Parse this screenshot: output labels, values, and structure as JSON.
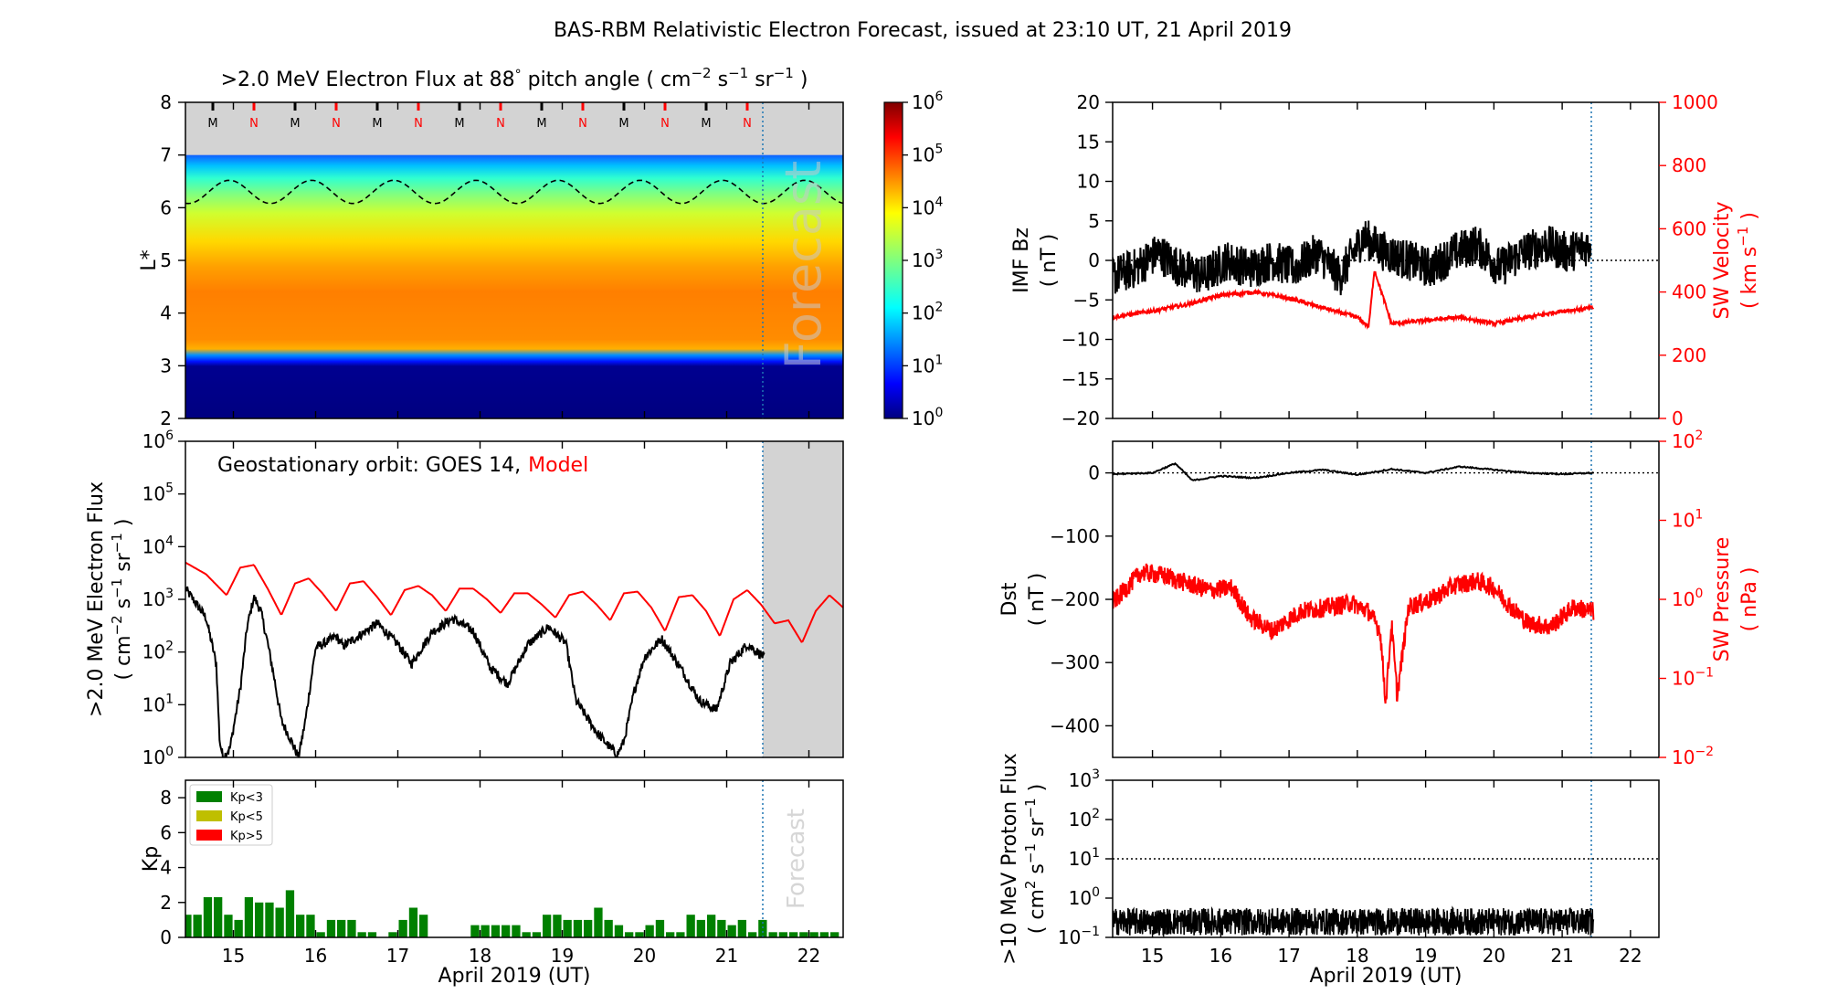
{
  "figure": {
    "title": "BAS-RBM Relativistic Electron Forecast, issued at 23:10 UT, 21 April 2019",
    "forecast_text": "Forecast",
    "date_axis_label": "April 2019 (UT)",
    "day_ticks": [
      "15",
      "16",
      "17",
      "18",
      "19",
      "20",
      "21",
      "22"
    ],
    "forecast_line_color": "#1f77b4"
  },
  "chart_data": [
    {
      "id": "flux-map",
      "type": "heatmap",
      "title": ">2.0 MeV Electron Flux at 88° pitch angle ( cm⁻² s⁻¹ sr⁻¹ )",
      "title_parts": [
        ">2.0 MeV Electron Flux at 88",
        "°",
        "  pitch angle ( cm",
        "−2",
        " s",
        "−1",
        " sr",
        "−1",
        " )"
      ],
      "ylabel": "L*",
      "ylim": [
        2,
        8
      ],
      "yticks": [
        "2",
        "3",
        "4",
        "5",
        "6",
        "7",
        "8"
      ],
      "xlim": [
        "2019-04-14T10:00",
        "2019-04-22T10:00"
      ],
      "forecast_start": "2019-04-21T12:00",
      "grey_band_l": [
        7,
        8
      ],
      "colormap": "jet",
      "mlt_markers": [
        "M",
        "N",
        "M",
        "N",
        "M",
        "N",
        "M",
        "N",
        "M",
        "N",
        "M",
        "N",
        "M",
        "N"
      ],
      "mlt_colors": {
        "M": "#000000",
        "N": "#ff0000"
      },
      "dashed_contour": {
        "mean_l": 6.3,
        "amplitude_l": 0.22,
        "period_days": 1
      },
      "colorbar": {
        "scale": "log",
        "range": [
          1,
          1000000
        ],
        "ticks": [
          {
            "base": "10",
            "exp": "0"
          },
          {
            "base": "10",
            "exp": "1"
          },
          {
            "base": "10",
            "exp": "2"
          },
          {
            "base": "10",
            "exp": "3"
          },
          {
            "base": "10",
            "exp": "4"
          },
          {
            "base": "10",
            "exp": "5"
          },
          {
            "base": "10",
            "exp": "6"
          }
        ]
      },
      "forecast_label": "Forecast"
    },
    {
      "id": "geo-flux",
      "type": "line",
      "annotation": "Geostationary orbit:   GOES 14,",
      "annotation_model": "Model",
      "ylabel_line1": ">2.0 MeV Electron Flux",
      "ylabel_line2_parts": [
        "( cm",
        "−2",
        " s",
        "−1",
        " sr",
        "−1",
        " )"
      ],
      "yscale": "log",
      "ylim": [
        1,
        1000000
      ],
      "yticks": [
        {
          "base": "10",
          "exp": "0"
        },
        {
          "base": "10",
          "exp": "1"
        },
        {
          "base": "10",
          "exp": "2"
        },
        {
          "base": "10",
          "exp": "3"
        },
        {
          "base": "10",
          "exp": "4"
        },
        {
          "base": "10",
          "exp": "5"
        },
        {
          "base": "10",
          "exp": "6"
        }
      ],
      "series": [
        {
          "name": "GOES 14",
          "color": "#000000",
          "x": [
            "04-14 10:00",
            "04-14 16:00",
            "04-14 19:00",
            "04-14 20:00",
            "04-14 21:00",
            "04-14 23:00",
            "04-15 02:00",
            "04-15 04:00",
            "04-15 06:00",
            "04-15 08:00",
            "04-15 10:00",
            "04-15 12:00",
            "04-15 14:00",
            "04-15 17:00",
            "04-15 19:00",
            "04-15 21:00",
            "04-16 00:00",
            "04-16 02:00",
            "04-16 06:00",
            "04-16 08:00",
            "04-16 12:00",
            "04-16 18:00",
            "04-17 00:00",
            "04-17 04:00",
            "04-17 10:00",
            "04-17 16:00",
            "04-17 22:00",
            "04-18 03:00",
            "04-18 08:00",
            "04-18 14:00",
            "04-18 20:00",
            "04-19 01:00",
            "04-19 04:00",
            "04-19 10:00",
            "04-19 16:00",
            "04-19 18:00",
            "04-19 21:00",
            "04-20 00:00",
            "04-20 05:00",
            "04-20 11:00",
            "04-20 16:00",
            "04-20 21:00",
            "04-21 01:00",
            "04-21 06:00",
            "04-21 11:00"
          ],
          "y": [
            1600,
            450,
            60,
            2,
            1,
            1.5,
            20,
            300,
            1100,
            600,
            150,
            30,
            5,
            2,
            1,
            5,
            120,
            140,
            200,
            130,
            190,
            350,
            140,
            60,
            240,
            430,
            250,
            50,
            25,
            140,
            300,
            150,
            12,
            3,
            1.1,
            2,
            18,
            80,
            180,
            45,
            12,
            8,
            60,
            140,
            80
          ]
        },
        {
          "name": "Model",
          "color": "#ff0000",
          "x": [
            "04-14 10:00",
            "04-14 16:00",
            "04-14 22:00",
            "04-15 02:00",
            "04-15 06:00",
            "04-15 10:00",
            "04-15 14:00",
            "04-15 18:00",
            "04-15 22:00",
            "04-16 02:00",
            "04-16 06:00",
            "04-16 10:00",
            "04-16 14:00",
            "04-16 18:00",
            "04-16 22:00",
            "04-17 02:00",
            "04-17 06:00",
            "04-17 10:00",
            "04-17 14:00",
            "04-17 18:00",
            "04-17 22:00",
            "04-18 02:00",
            "04-18 06:00",
            "04-18 10:00",
            "04-18 14:00",
            "04-18 18:00",
            "04-18 22:00",
            "04-19 02:00",
            "04-19 06:00",
            "04-19 10:00",
            "04-19 14:00",
            "04-19 18:00",
            "04-19 22:00",
            "04-20 02:00",
            "04-20 06:00",
            "04-20 10:00",
            "04-20 14:00",
            "04-20 18:00",
            "04-20 22:00",
            "04-21 02:00",
            "04-21 06:00",
            "04-21 10:00",
            "04-21 14:00",
            "04-21 18:00",
            "04-21 22:00",
            "04-22 02:00",
            "04-22 06:00",
            "04-22 10:00"
          ],
          "y": [
            5000,
            3000,
            1200,
            4000,
            4500,
            1600,
            500,
            2000,
            2500,
            1300,
            600,
            2000,
            2200,
            1100,
            500,
            1500,
            1800,
            1200,
            600,
            1600,
            1600,
            1000,
            550,
            1300,
            1300,
            800,
            450,
            1200,
            1400,
            800,
            400,
            1300,
            1400,
            700,
            250,
            1100,
            1200,
            600,
            200,
            1000,
            1500,
            800,
            350,
            400,
            150,
            600,
            1200,
            700
          ]
        }
      ]
    },
    {
      "id": "kp",
      "type": "bar",
      "ylabel": "Kp",
      "ylim": [
        0,
        9
      ],
      "yticks": [
        "0",
        "2",
        "4",
        "6",
        "8"
      ],
      "legend": [
        {
          "label": "Kp<3",
          "color": "#008000"
        },
        {
          "label": "Kp<5",
          "color": "#bfbf00"
        },
        {
          "label": "Kp>5",
          "color": "#ff0000"
        }
      ],
      "legend_position": "top-left",
      "bar_start": "2019-04-14T09:00",
      "bar_hours": 3,
      "values": [
        1.3,
        1.3,
        2.3,
        2.3,
        1.3,
        1.0,
        2.3,
        2.0,
        2.0,
        1.7,
        2.7,
        1.3,
        1.3,
        0.3,
        1.0,
        1.0,
        1.0,
        0.3,
        0.3,
        0.0,
        0.3,
        1.0,
        1.7,
        1.3,
        0.0,
        0.0,
        0.0,
        0.0,
        0.7,
        0.7,
        0.7,
        0.7,
        0.7,
        0.3,
        0.3,
        1.3,
        1.3,
        1.0,
        1.0,
        1.0,
        1.7,
        1.0,
        0.7,
        0.3,
        0.3,
        0.7,
        1.0,
        0.3,
        0.3,
        1.3,
        1.0,
        1.3,
        1.0,
        0.7,
        1.0,
        0.3,
        1.0,
        0.3,
        0.3,
        0.3,
        0.3,
        0.3,
        0.3,
        0.3
      ],
      "forecast_label": "Forecast"
    },
    {
      "id": "imf-sw",
      "type": "line",
      "ylabel_left": [
        "IMF Bz",
        "( nT )"
      ],
      "ylim_left": [
        -20,
        20
      ],
      "yticks_left": [
        "−20",
        "−15",
        "−10",
        "−5",
        "0",
        "5",
        "10",
        "15",
        "20"
      ],
      "ylabel_right_parts": [
        "SW Velocity",
        "( km s",
        "−1",
        " )"
      ],
      "ylim_right": [
        0,
        1000
      ],
      "yticks_right": [
        "0",
        "200",
        "400",
        "600",
        "800",
        "1000"
      ],
      "series": [
        {
          "name": "IMF Bz",
          "color": "#000000",
          "x": [
            "04-14 10:00",
            "04-14 18:00",
            "04-15 02:00",
            "04-15 10:00",
            "04-15 18:00",
            "04-16 02:00",
            "04-16 10:00",
            "04-16 18:00",
            "04-17 02:00",
            "04-17 10:00",
            "04-17 18:00",
            "04-18 02:00",
            "04-18 10:00",
            "04-18 18:00",
            "04-19 02:00",
            "04-19 10:00",
            "04-19 18:00",
            "04-20 02:00",
            "04-20 10:00",
            "04-20 18:00",
            "04-21 02:00",
            "04-21 10:00"
          ],
          "y": [
            -2,
            -1,
            1,
            -1,
            -2,
            0,
            -1,
            0,
            -1,
            1,
            -2,
            3,
            1,
            0,
            -1,
            1,
            2,
            -1,
            1,
            2,
            1,
            2
          ],
          "noise": 2.6
        },
        {
          "name": "SW Velocity",
          "color": "#ff0000",
          "x": [
            "04-14 10:00",
            "04-15 00:00",
            "04-15 12:00",
            "04-16 00:00",
            "04-16 12:00",
            "04-17 00:00",
            "04-17 12:00",
            "04-18 00:00",
            "04-18 04:00",
            "04-18 06:00",
            "04-18 12:00",
            "04-19 00:00",
            "04-19 12:00",
            "04-20 00:00",
            "04-20 12:00",
            "04-21 00:00",
            "04-21 11:00"
          ],
          "y": [
            320,
            340,
            360,
            390,
            400,
            380,
            350,
            320,
            290,
            470,
            300,
            310,
            320,
            300,
            320,
            340,
            350
          ],
          "noise": 6
        }
      ],
      "dotted_zero": true
    },
    {
      "id": "dst-pressure",
      "type": "line",
      "ylabel_left": [
        "Dst",
        "( nT )"
      ],
      "ylim_left": [
        -450,
        50
      ],
      "yticks_left": [
        "−400",
        "−300",
        "−200",
        "−100",
        "0"
      ],
      "ylabel_right": [
        "SW Pressure",
        "( nPa )"
      ],
      "yscale_right": "log",
      "ylim_right": [
        0.01,
        100
      ],
      "yticks_right": [
        {
          "base": "10",
          "exp": "−2"
        },
        {
          "base": "10",
          "exp": "−1"
        },
        {
          "base": "10",
          "exp": "0"
        },
        {
          "base": "10",
          "exp": "1"
        },
        {
          "base": "10",
          "exp": "2"
        }
      ],
      "series": [
        {
          "name": "Dst",
          "color": "#000000",
          "x": [
            "04-14 10:00",
            "04-15 00:00",
            "04-15 08:00",
            "04-15 14:00",
            "04-16 00:00",
            "04-16 12:00",
            "04-17 00:00",
            "04-17 12:00",
            "04-18 00:00",
            "04-18 12:00",
            "04-19 00:00",
            "04-19 12:00",
            "04-20 00:00",
            "04-20 12:00",
            "04-21 00:00",
            "04-21 11:00"
          ],
          "y": [
            -2,
            0,
            15,
            -12,
            -5,
            -8,
            0,
            5,
            -3,
            6,
            0,
            10,
            5,
            0,
            -2,
            0
          ]
        },
        {
          "name": "SW Pressure",
          "color": "#ff0000",
          "x": [
            "04-14 10:00",
            "04-14 20:00",
            "04-15 04:00",
            "04-15 12:00",
            "04-15 20:00",
            "04-16 04:00",
            "04-16 10:00",
            "04-16 18:00",
            "04-17 04:00",
            "04-17 14:00",
            "04-17 22:00",
            "04-18 04:00",
            "04-18 08:00",
            "04-18 10:00",
            "04-18 12:00",
            "04-18 14:00",
            "04-18 18:00",
            "04-19 02:00",
            "04-19 10:00",
            "04-19 18:00",
            "04-20 00:00",
            "04-20 06:00",
            "04-20 12:00",
            "04-20 20:00",
            "04-21 04:00",
            "04-21 11:00"
          ],
          "y": [
            0.9,
            2.2,
            2.0,
            1.6,
            1.3,
            1.4,
            0.6,
            0.4,
            0.7,
            0.8,
            0.9,
            0.7,
            0.4,
            0.05,
            0.5,
            0.06,
            0.8,
            1.0,
            1.5,
            1.7,
            1.4,
            0.8,
            0.5,
            0.45,
            0.8,
            0.7
          ],
          "noise": 0.12
        }
      ],
      "dotted_zero": true
    },
    {
      "id": "proton-flux",
      "type": "line",
      "ylabel": [
        ">10 MeV Proton Flux",
        "( cm",
        "2",
        " s",
        "−1",
        " sr",
        "−1",
        " )"
      ],
      "yscale": "log",
      "ylim": [
        0.1,
        1000
      ],
      "yticks": [
        {
          "base": "10",
          "exp": "−1"
        },
        {
          "base": "10",
          "exp": "0"
        },
        {
          "base": "10",
          "exp": "1"
        },
        {
          "base": "10",
          "exp": "2"
        },
        {
          "base": "10",
          "exp": "3"
        }
      ],
      "threshold": 10,
      "series": [
        {
          "name": "Proton flux",
          "color": "#000000",
          "x": [
            "04-14 10:00",
            "04-21 11:00"
          ],
          "y": [
            0.25,
            0.25
          ],
          "noise": 0.35
        }
      ]
    }
  ]
}
